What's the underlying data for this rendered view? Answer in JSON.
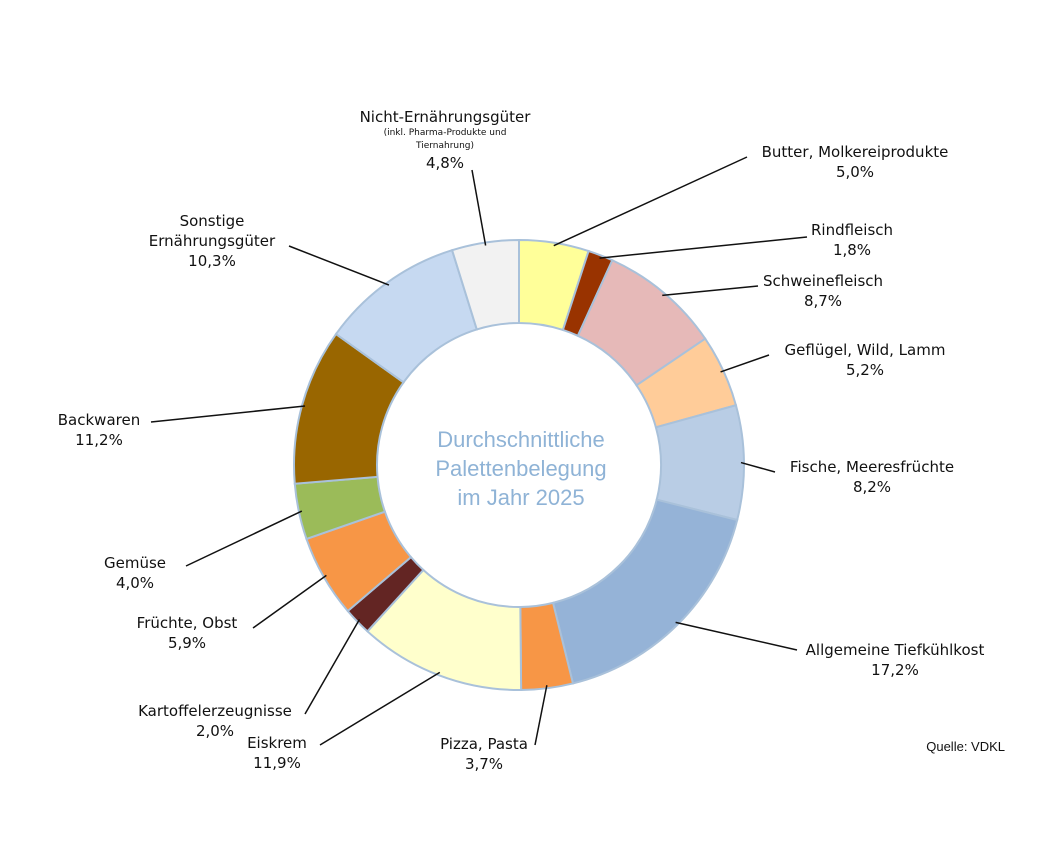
{
  "chart_data": {
    "type": "pie",
    "style": "donut",
    "center_text": [
      "Durchschnittliche",
      "Palettenbelegung",
      "im Jahr 2025"
    ],
    "source": "Quelle: VDKL",
    "slices": [
      {
        "label": "Butter, Molkereiprodukte",
        "value": 5.0,
        "value_label": "5,0%",
        "color": "#FFFF99"
      },
      {
        "label": "Rindfleisch",
        "value": 1.8,
        "value_label": "1,8%",
        "color": "#993300"
      },
      {
        "label": "Schweinefleisch",
        "value": 8.7,
        "value_label": "8,7%",
        "color": "#E6B9B8"
      },
      {
        "label": "Geflügel, Wild, Lamm",
        "value": 5.2,
        "value_label": "5,2%",
        "color": "#FFCC99"
      },
      {
        "label": "Fische, Meeresfrüchte",
        "value": 8.2,
        "value_label": "8,2%",
        "color": "#B9CDE5"
      },
      {
        "label": "Allgemeine Tiefkühlkost",
        "value": 17.2,
        "value_label": "17,2%",
        "color": "#95B3D7"
      },
      {
        "label": "Pizza, Pasta",
        "value": 3.7,
        "value_label": "3,7%",
        "color": "#F79646"
      },
      {
        "label": "Eiskrem",
        "value": 11.9,
        "value_label": "11,9%",
        "color": "#FFFFCC"
      },
      {
        "label": "Kartoffelerzeugnisse",
        "value": 2.0,
        "value_label": "2,0%",
        "color": "#632523"
      },
      {
        "label": "Früchte, Obst",
        "value": 5.9,
        "value_label": "5,9%",
        "color": "#F79646"
      },
      {
        "label": "Gemüse",
        "value": 4.0,
        "value_label": "4,0%",
        "color": "#9BBB59"
      },
      {
        "label": "Backwaren",
        "value": 11.2,
        "value_label": "11,2%",
        "color": "#996600"
      },
      {
        "label": "Sonstige Ernährungsgüter",
        "value": 10.3,
        "value_label": "10,3%",
        "color": "#C6D9F1",
        "label_lines": [
          "Sonstige",
          "Ernährungsgüter"
        ]
      },
      {
        "label": "Nicht-Ernährungsgüter",
        "value": 4.8,
        "value_label": "4,8%",
        "color": "#F2F2F2",
        "note_lines": [
          "(inkl. Pharma-Produkte und",
          "Tiernahrung)"
        ]
      }
    ]
  }
}
